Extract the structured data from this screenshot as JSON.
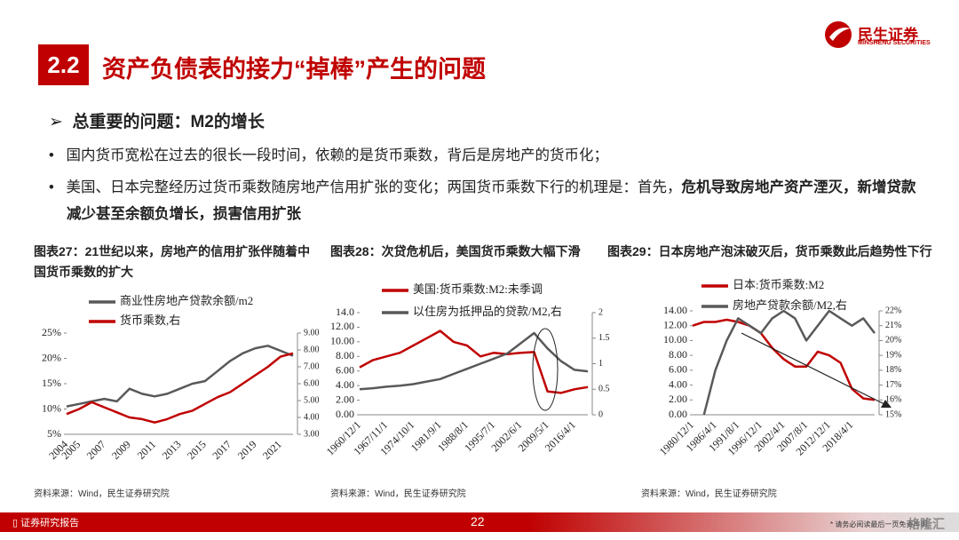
{
  "header": {
    "badge": "2.2",
    "title": "资产负债表的接力“掉棒”产生的问题",
    "logo_cn": "民生证券",
    "logo_en": "MINSHENG SECURITIES"
  },
  "subheading": "总重要的问题：M2的增长",
  "bullets": [
    {
      "segments": [
        {
          "text": "国内货币宽松在过去的很长一段时间，依赖的是货币乘数，背后是房地产的货币化；",
          "bold": false
        }
      ]
    },
    {
      "segments": [
        {
          "text": "美国、日本完整经历过货币乘数随房地产信用扩张的变化；两国货币乘数下行的机理是：首先，",
          "bold": false
        },
        {
          "text": "危机导致房地产资产湮灭，新增贷款减少甚至余额负增长，损害信用扩张",
          "bold": true
        }
      ]
    }
  ],
  "chart_data": [
    {
      "type": "line",
      "title": "图表27：21世纪以来，房地产的信用扩张伴随着中国货币乘数的扩大",
      "source": "资料来源：Wind，民生证券研究院",
      "categories": [
        "2004",
        "2005",
        null,
        "2007",
        null,
        "2009",
        null,
        "2011",
        null,
        "2013",
        null,
        "2015",
        null,
        "2017",
        null,
        "2019",
        null,
        "2021",
        null
      ],
      "ylim": [
        5,
        25
      ],
      "yticks": [
        {
          "value": 5,
          "label": "5%"
        },
        {
          "value": 10,
          "label": "10%"
        },
        {
          "value": 15,
          "label": "15%"
        },
        {
          "value": 20,
          "label": "20%"
        },
        {
          "value": 25,
          "label": "25%"
        }
      ],
      "y2lim": [
        3,
        9
      ],
      "y2ticks": [
        {
          "value": 3,
          "label": "3.00"
        },
        {
          "value": 4,
          "label": "4.00"
        },
        {
          "value": 5,
          "label": "5.00"
        },
        {
          "value": 6,
          "label": "6.00"
        },
        {
          "value": 7,
          "label": "7.00"
        },
        {
          "value": 8,
          "label": "8.00"
        },
        {
          "value": 9,
          "label": "9.00"
        }
      ],
      "series": [
        {
          "name": "商业性房地产贷款余额/m2",
          "color": "#595959",
          "values": [
            10.5,
            11,
            11.5,
            12,
            11.5,
            14,
            13,
            12.5,
            13,
            14,
            15,
            15.5,
            17.5,
            19.5,
            21,
            22,
            22.5,
            21.5,
            20.5
          ]
        },
        {
          "name": "货币乘数,右",
          "color": "#c00000",
          "axis": "y2",
          "values": [
            4.2,
            4.5,
            4.9,
            4.6,
            4.3,
            4.0,
            3.9,
            3.7,
            3.9,
            4.2,
            4.4,
            4.8,
            5.2,
            5.5,
            6.0,
            6.5,
            7.0,
            7.6,
            7.8
          ]
        }
      ]
    },
    {
      "type": "line",
      "title": "图表28：次贷危机后，美国货币乘数大幅下滑",
      "source": "资料来源：Wind，民生证券研究院",
      "categories": [
        "1960/12/1",
        null,
        "1967/11/1",
        null,
        "1974/10/1",
        null,
        "1981/9/1",
        null,
        "1988/8/1",
        null,
        "1995/7/1",
        null,
        "2002/6/1",
        null,
        "2009/5/1",
        null,
        "2016/4/1",
        null
      ],
      "ylim": [
        0,
        14
      ],
      "yticks": [
        {
          "value": 0,
          "label": "0.00"
        },
        {
          "value": 2,
          "label": "2.00"
        },
        {
          "value": 4,
          "label": "4.00"
        },
        {
          "value": 6,
          "label": "6.00"
        },
        {
          "value": 8,
          "label": "8.00"
        },
        {
          "value": 10,
          "label": "10.00"
        },
        {
          "value": 12,
          "label": "12.00"
        },
        {
          "value": 14,
          "label": "14.0"
        }
      ],
      "y2lim": [
        0,
        2
      ],
      "y2ticks": [
        0,
        0.5,
        1,
        1.5,
        2
      ],
      "series": [
        {
          "name": "美国:货币乘数:M2:未季调",
          "color": "#c00000",
          "values": [
            6.5,
            7.5,
            8,
            8.5,
            9.5,
            10.5,
            11.5,
            10,
            9.5,
            8,
            8.5,
            8.3,
            8.5,
            8.6,
            3.2,
            3,
            3.5,
            3.8
          ]
        },
        {
          "name": "以住房为抵押品的贷款/M2,右",
          "color": "#595959",
          "axis": "y2",
          "values": [
            0.5,
            0.52,
            0.55,
            0.57,
            0.6,
            0.65,
            0.7,
            0.8,
            0.9,
            1.0,
            1.1,
            1.2,
            1.4,
            1.6,
            1.3,
            1.05,
            0.88,
            0.85
          ]
        }
      ]
    },
    {
      "type": "line",
      "title": "图表29：日本房地产泡沫破灭后，货币乘数此后趋势性下行",
      "source": "资料来源：Wind，民生证券研究院",
      "categories": [
        "1980/12/1",
        null,
        "1986/4/1",
        null,
        "1991/8/1",
        null,
        "1996/12/1",
        null,
        "2002/4/1",
        null,
        "2007/8/1",
        null,
        "2012/12/1",
        null,
        "2018/4/1",
        null,
        null
      ],
      "ylim": [
        0,
        14
      ],
      "yticks": [
        {
          "value": 0,
          "label": "0.00"
        },
        {
          "value": 2,
          "label": "2.00"
        },
        {
          "value": 4,
          "label": "4.00"
        },
        {
          "value": 6,
          "label": "6.00"
        },
        {
          "value": 8,
          "label": "8.00"
        },
        {
          "value": 10,
          "label": "10.00"
        },
        {
          "value": 12,
          "label": "12.00"
        },
        {
          "value": 14,
          "label": "14.00"
        }
      ],
      "y2lim": [
        15,
        22
      ],
      "y2ticks": [
        {
          "value": 15,
          "label": "15%"
        },
        {
          "value": 16,
          "label": "16%"
        },
        {
          "value": 17,
          "label": "17%"
        },
        {
          "value": 18,
          "label": "18%"
        },
        {
          "value": 19,
          "label": "19%"
        },
        {
          "value": 20,
          "label": "20%"
        },
        {
          "value": 21,
          "label": "21%"
        },
        {
          "value": 22,
          "label": "22%"
        }
      ],
      "series": [
        {
          "name": "日本:货币乘数:M2",
          "color": "#c00000",
          "values": [
            12,
            12.5,
            12.5,
            12.8,
            12.5,
            12,
            11,
            9,
            7.5,
            6.5,
            6.5,
            8.5,
            8,
            7,
            3.5,
            2.2,
            2
          ]
        },
        {
          "name": "房地产贷款余额/M2,右",
          "color": "#595959",
          "axis": "y2",
          "values": [
            null,
            15,
            18,
            20,
            21.5,
            21,
            20.5,
            21.5,
            22,
            21.5,
            20,
            21,
            22,
            21.5,
            21,
            21.5,
            20.5
          ]
        }
      ]
    }
  ],
  "footer": {
    "left": "证券研究报告",
    "page": "22",
    "disclaimer": "* 请务必阅读最后一页免责声明",
    "watermark": "格隆汇"
  }
}
